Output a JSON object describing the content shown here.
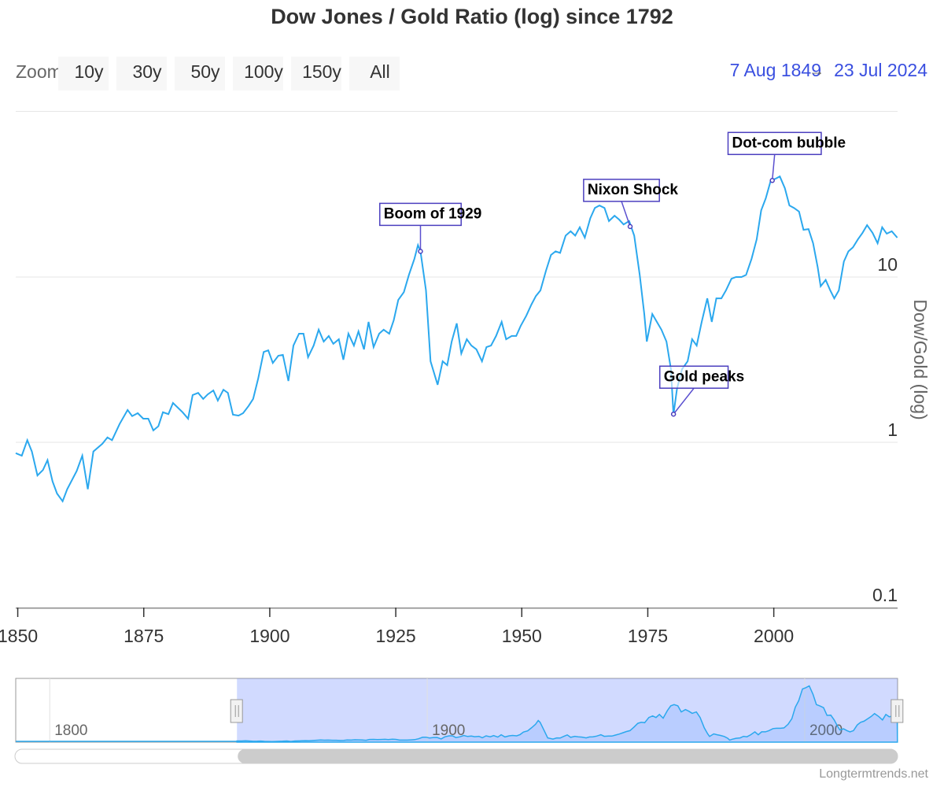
{
  "chart_data": {
    "type": "line",
    "title": "Dow Jones / Gold Ratio (log) since 1792",
    "y_axis_label": "Dow/Gold (log)",
    "log_scale": true,
    "grid": true,
    "zoom_label": "Zoom",
    "zoom_buttons": [
      "10y",
      "30y",
      "50y",
      "100y",
      "150y",
      "All"
    ],
    "range": {
      "from": "7 Aug 1849",
      "separator": "→",
      "to": "23 Jul 2024"
    },
    "credits": "Longtermtrends.net",
    "xlim": [
      1849.6,
      2024.56
    ],
    "xticks": [
      1850,
      1875,
      1900,
      1925,
      1950,
      1975,
      2000
    ],
    "ylim": [
      0.1,
      100
    ],
    "yticks": [
      0.1,
      1,
      10
    ],
    "navigator": {
      "xlim": [
        1791,
        2024.6
      ],
      "xticks": [
        1800,
        1900,
        2000
      ],
      "ylim": [
        0,
        46
      ]
    },
    "series": [
      {
        "name": "Dow/Gold",
        "color": "#2ba8ee",
        "x": [
          1849.6,
          1850.8,
          1851.9,
          1852.8,
          1853.9,
          1855.0,
          1855.9,
          1856.9,
          1857.8,
          1858.9,
          1859.8,
          1861.7,
          1862.8,
          1863.9,
          1865.0,
          1866.8,
          1867.8,
          1868.7,
          1870.2,
          1871.8,
          1872.7,
          1873.8,
          1874.9,
          1875.9,
          1876.9,
          1877.9,
          1878.8,
          1879.9,
          1880.8,
          1882.7,
          1883.8,
          1884.7,
          1885.8,
          1886.8,
          1887.7,
          1888.8,
          1889.7,
          1890.8,
          1891.7,
          1892.7,
          1893.8,
          1894.7,
          1895.8,
          1896.7,
          1897.7,
          1898.8,
          1899.7,
          1900.6,
          1901.7,
          1902.6,
          1903.7,
          1904.7,
          1905.8,
          1906.7,
          1907.6,
          1908.7,
          1909.7,
          1910.7,
          1911.7,
          1912.6,
          1913.7,
          1914.6,
          1915.6,
          1916.7,
          1917.6,
          1918.7,
          1919.6,
          1920.6,
          1921.7,
          1922.6,
          1923.7,
          1924.6,
          1925.5,
          1926.6,
          1927.6,
          1928.7,
          1929.4,
          1929.9,
          1931.0,
          1931.9,
          1933.3,
          1934.3,
          1935.2,
          1936.1,
          1937.1,
          1938.0,
          1939.1,
          1940.0,
          1941.0,
          1942.1,
          1943.0,
          1943.9,
          1944.9,
          1946.0,
          1946.9,
          1948.0,
          1948.9,
          1949.8,
          1950.9,
          1951.9,
          1952.8,
          1953.7,
          1954.8,
          1955.8,
          1956.7,
          1957.6,
          1958.7,
          1959.7,
          1960.6,
          1961.5,
          1962.5,
          1963.6,
          1964.5,
          1965.4,
          1966.4,
          1967.3,
          1968.4,
          1969.3,
          1970.2,
          1971.3,
          1972.3,
          1973.4,
          1974.3,
          1974.8,
          1975.9,
          1976.8,
          1977.7,
          1978.7,
          1979.6,
          1980.1,
          1980.8,
          1981.8,
          1982.9,
          1983.8,
          1984.7,
          1985.7,
          1986.8,
          1987.7,
          1988.6,
          1989.6,
          1990.5,
          1991.6,
          1992.5,
          1993.6,
          1994.5,
          1995.6,
          1996.6,
          1997.5,
          1998.4,
          1999.4,
          2000.3,
          2001.2,
          2002.2,
          2003.1,
          2004.0,
          2005.0,
          2005.9,
          2006.9,
          2007.8,
          2008.7,
          2009.3,
          2010.3,
          2011.2,
          2012.0,
          2012.9,
          2013.9,
          2014.8,
          2015.7,
          2016.7,
          2017.6,
          2018.5,
          2019.6,
          2020.6,
          2021.5,
          2022.4,
          2023.4,
          2024.5
        ],
        "values": [
          0.86,
          0.83,
          1.03,
          0.88,
          0.63,
          0.68,
          0.78,
          0.58,
          0.49,
          0.44,
          0.52,
          0.67,
          0.83,
          0.52,
          0.88,
          0.98,
          1.07,
          1.03,
          1.29,
          1.57,
          1.44,
          1.5,
          1.39,
          1.39,
          1.18,
          1.25,
          1.52,
          1.48,
          1.73,
          1.52,
          1.39,
          1.93,
          1.99,
          1.83,
          1.95,
          2.06,
          1.79,
          2.08,
          1.99,
          1.47,
          1.45,
          1.5,
          1.66,
          1.83,
          2.43,
          3.52,
          3.6,
          3.02,
          3.34,
          3.38,
          2.35,
          3.85,
          4.54,
          4.54,
          3.27,
          3.85,
          4.8,
          4.07,
          4.4,
          3.94,
          4.2,
          3.16,
          4.54,
          3.85,
          4.69,
          3.65,
          5.35,
          3.77,
          4.54,
          4.8,
          4.54,
          5.47,
          7.28,
          8.1,
          10.3,
          12.9,
          15.6,
          14.3,
          8.3,
          3.09,
          2.23,
          3.09,
          2.93,
          4.07,
          5.24,
          3.45,
          4.2,
          3.85,
          3.65,
          3.09,
          3.77,
          3.85,
          4.4,
          5.35,
          4.2,
          4.4,
          4.4,
          5.07,
          5.83,
          6.81,
          7.67,
          8.3,
          10.9,
          13.6,
          14.3,
          14.0,
          17.8,
          18.9,
          17.8,
          20.0,
          17.3,
          22.7,
          26.2,
          27.1,
          26.2,
          21.8,
          23.5,
          22.3,
          20.8,
          21.8,
          17.8,
          10.3,
          5.97,
          4.07,
          5.97,
          5.35,
          4.8,
          4.07,
          2.77,
          1.47,
          2.11,
          2.77,
          3.09,
          4.2,
          3.85,
          5.35,
          7.43,
          5.35,
          7.43,
          7.43,
          8.3,
          9.76,
          10.0,
          10.0,
          10.3,
          12.9,
          16.9,
          25.3,
          29.9,
          38.4,
          39.3,
          40.6,
          34.5,
          27.1,
          26.2,
          24.9,
          19.3,
          19.5,
          16.0,
          11.5,
          8.8,
          9.6,
          8.3,
          7.43,
          8.3,
          12.4,
          14.3,
          15.1,
          16.9,
          18.5,
          20.6,
          18.5,
          16.0,
          20.0,
          18.3,
          18.9,
          17.3
        ]
      }
    ],
    "annotations": [
      {
        "text": "Boom of 1929",
        "x": 1929.9,
        "y": 14.3
      },
      {
        "text": "Nixon Shock",
        "x": 1971.5,
        "y": 20.2
      },
      {
        "text": "Dot-com bubble",
        "x": 1999.7,
        "y": 38.4
      },
      {
        "text": "Gold peaks",
        "x": 1980.1,
        "y": 1.48
      }
    ]
  }
}
